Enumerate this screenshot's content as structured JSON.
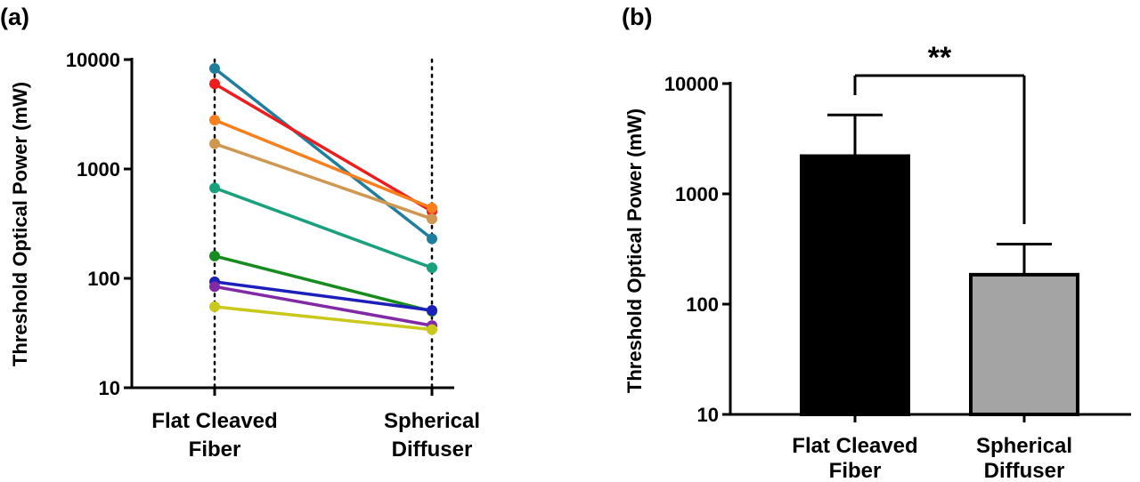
{
  "chart_data": [
    {
      "panel_label": "(a)",
      "type": "line",
      "ylabel": "Threshold Optical Power (mW)",
      "yscale": "log",
      "ylim": [
        10,
        10000
      ],
      "yticks": [
        "10",
        "100",
        "1000",
        "10000"
      ],
      "categories": [
        "Flat Cleaved Fiber",
        "Spherical Diffuser"
      ],
      "category_lines": [
        [
          "Flat Cleaved",
          "Fiber"
        ],
        [
          "Spherical",
          "Diffuser"
        ]
      ],
      "grid": "dotted vertical lines at each category",
      "series": [
        {
          "color": "#1f7e9e",
          "values": [
            8300,
            230
          ]
        },
        {
          "color": "#ee1c1c",
          "values": [
            6000,
            410
          ]
        },
        {
          "color": "#f97e1c",
          "values": [
            2800,
            440
          ]
        },
        {
          "color": "#cf9752",
          "values": [
            1700,
            350
          ]
        },
        {
          "color": "#19a07c",
          "values": [
            670,
            125
          ]
        },
        {
          "color": "#168c1e",
          "values": [
            160,
            50
          ]
        },
        {
          "color": "#1d1fba",
          "values": [
            93,
            51
          ]
        },
        {
          "color": "#8229a6",
          "values": [
            84,
            37
          ]
        },
        {
          "color": "#c9c81b",
          "values": [
            55,
            34
          ]
        }
      ]
    },
    {
      "panel_label": "(b)",
      "type": "bar",
      "ylabel": "Threshold Optical Power (mW)",
      "yscale": "log",
      "ylim": [
        10,
        10000
      ],
      "yticks": [
        "10",
        "100",
        "1000",
        "10000"
      ],
      "categories": [
        "Flat Cleaved Fiber",
        "Spherical Diffuser"
      ],
      "category_lines": [
        [
          "Flat Cleaved",
          "Fiber"
        ],
        [
          "Spherical",
          "Diffuser"
        ]
      ],
      "values": [
        2200,
        185
      ],
      "error_upper": [
        5200,
        350
      ],
      "bar_colors": [
        "#000000",
        "#a4a4a4"
      ],
      "significance": "**"
    }
  ]
}
